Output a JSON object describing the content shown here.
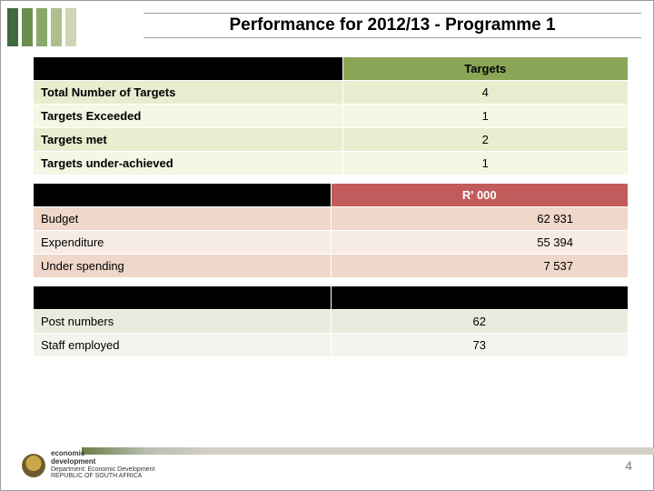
{
  "title": "Performance for 2012/13 - Programme 1",
  "page_number": "4",
  "colors": {
    "header_bars": [
      "#3f6b3e",
      "#6b8e4e",
      "#8aa86a",
      "#aebf8c",
      "#cdd7b5"
    ],
    "title_border": "#9e9e9e",
    "black": "#000000",
    "white": "#ffffff",
    "footer_gradient": [
      "#6a7f47",
      "#b8bdb0",
      "#d3cfc7"
    ]
  },
  "targets_table": {
    "type": "table",
    "header": "Targets",
    "header_bg": "#8ba557",
    "rows": [
      {
        "label": "Total Number of Targets",
        "value": "4",
        "bg": "#e8edcf"
      },
      {
        "label": "Targets Exceeded",
        "value": "1",
        "bg": "#f3f7e4"
      },
      {
        "label": "Targets met",
        "value": "2",
        "bg": "#e8edcf"
      },
      {
        "label": "Targets under-achieved",
        "value": "1",
        "bg": "#f3f7e4"
      }
    ]
  },
  "financial_table": {
    "type": "table",
    "header": "R' 000",
    "header_bg": "#c25b5b",
    "rows": [
      {
        "label": "Budget",
        "value": "62 931",
        "bg": "#efd7c9"
      },
      {
        "label": "Expenditure",
        "value": "55 394",
        "bg": "#f7ece4"
      },
      {
        "label": "Under spending",
        "value": "7 537",
        "bg": "#efd7c9"
      }
    ]
  },
  "staff_table": {
    "type": "table",
    "rows": [
      {
        "label": "Post numbers",
        "value": "62",
        "bg": "#eaeadf"
      },
      {
        "label": "Staff employed",
        "value": "73",
        "bg": "#f4f4ee"
      }
    ]
  },
  "footer": {
    "dept_line1": "economic",
    "dept_line2": "development",
    "dept_line3": "Department: Economic Development",
    "dept_line4": "REPUBLIC OF SOUTH AFRICA"
  }
}
